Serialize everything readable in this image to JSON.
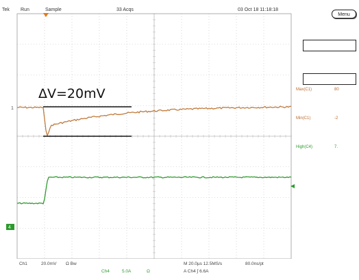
{
  "header": {
    "brand": "Tek",
    "run_state": "Run",
    "mode": "Sample",
    "acqs": "33 Acqs",
    "timestamp": "03 Oct 18 11:18:18"
  },
  "side_panel": {
    "menu_label": "Menu",
    "measurements": [
      {
        "label": "Max(C1)",
        "value": "80",
        "color": "#b86a2e"
      },
      {
        "label": "Min(C1)",
        "value": "-2",
        "color": "#b86a2e"
      },
      {
        "label": "High(C4)",
        "value": "7.",
        "color": "#2b9a2b"
      }
    ]
  },
  "markers": {
    "ch1_level": "1",
    "ch4_level": "4"
  },
  "annotation": {
    "delta_v": "ΔV=20mV"
  },
  "footer": {
    "ch1": "Ch1",
    "ch1_scale": "20.0mV",
    "ch1_coupling": "Ω Bw",
    "ch4": "Ch4",
    "ch4_scale": "5.0A",
    "ch4_coupling": "Ω",
    "timebase": "M 20.0µs 12.5MS/s",
    "record": "80.0ns/pt",
    "trigger": "A  Ch4  ∫  6.6A"
  },
  "colors": {
    "ch1_trace": "#c0793a",
    "ch4_trace": "#2e9a2e",
    "grid": "#bdbdbd",
    "trigger_marker": "#e07a1a"
  }
}
